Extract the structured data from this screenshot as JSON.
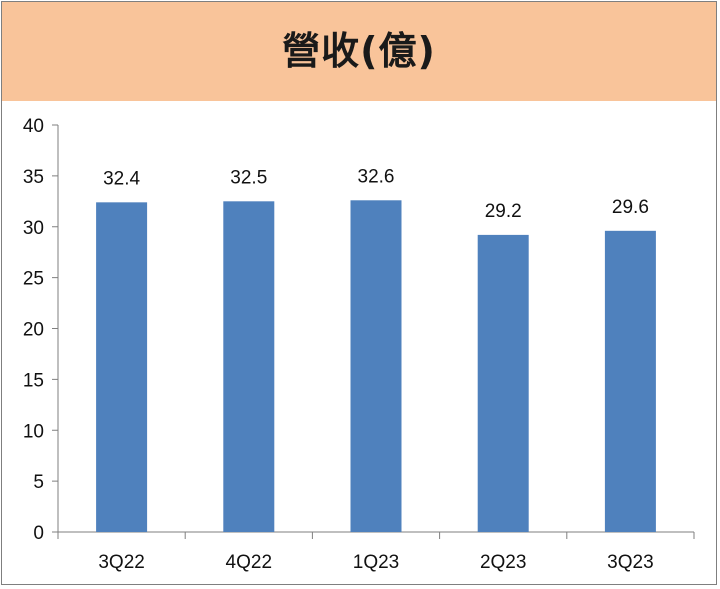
{
  "chart_data": {
    "type": "bar",
    "title": "營收(億)",
    "categories": [
      "3Q22",
      "4Q22",
      "1Q23",
      "2Q23",
      "3Q23"
    ],
    "values": [
      32.4,
      32.5,
      32.6,
      29.2,
      29.6
    ],
    "data_labels": [
      "32.4",
      "32.5",
      "32.6",
      "29.2",
      "29.6"
    ],
    "y_ticks": [
      "0",
      "5",
      "10",
      "15",
      "20",
      "25",
      "30",
      "35",
      "40"
    ],
    "ylim": [
      0,
      40
    ],
    "grid": false,
    "legend": "none",
    "bar_color": "#4f81bd",
    "title_band_color": "#f9c49a"
  }
}
